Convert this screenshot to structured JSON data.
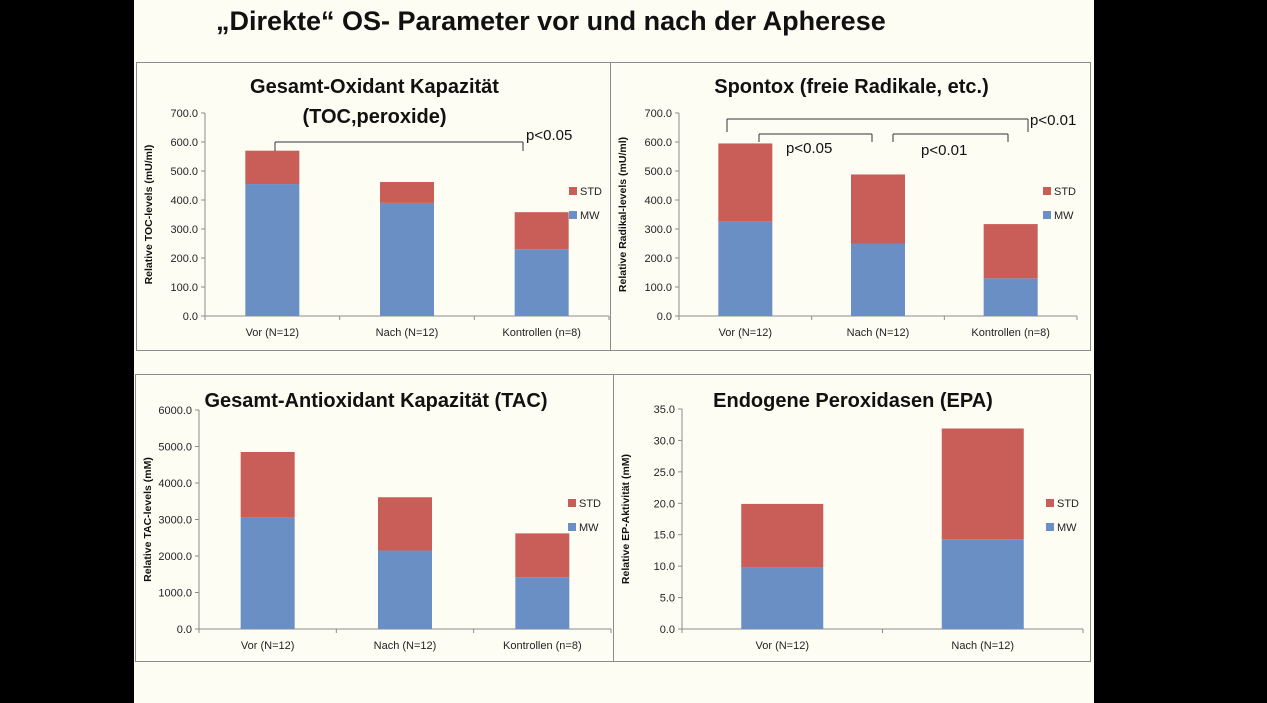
{
  "slide_title": "„Direkte“ OS- Parameter vor und nach der Apherese",
  "colors": {
    "mw": "#6a8fc5",
    "std": "#c95e58",
    "axis": "#8c8c8c",
    "bracket": "#333333"
  },
  "legend": {
    "std": "STD",
    "mw": "MW"
  },
  "chart_data": [
    {
      "type": "bar",
      "stacked": true,
      "title_lines": [
        "Gesamt-Oxidant Kapazität",
        "(TOC,peroxide)"
      ],
      "ylabel": "Relative TOC-levels (mU/ml)",
      "categories": [
        "Vor (N=12)",
        "Nach (N=12)",
        "Kontrollen (n=8)"
      ],
      "y_ticks": [
        "0.0",
        "100.0",
        "200.0",
        "300.0",
        "400.0",
        "500.0",
        "600.0",
        "700.0"
      ],
      "ylim": [
        0,
        700
      ],
      "series": [
        {
          "name": "MW",
          "values": [
            455,
            390,
            230
          ]
        },
        {
          "name": "STD",
          "values": [
            115,
            72,
            128
          ]
        }
      ],
      "annotations": [
        "p<0.05"
      ]
    },
    {
      "type": "bar",
      "stacked": true,
      "title_lines": [
        "Spontox (freie Radikale, etc.)"
      ],
      "ylabel": "Relative Radikal-levels (mU/ml)",
      "categories": [
        "Vor (N=12)",
        "Nach (N=12)",
        "Kontrollen (n=8)"
      ],
      "y_ticks": [
        "0.0",
        "100.0",
        "200.0",
        "300.0",
        "400.0",
        "500.0",
        "600.0",
        "700.0"
      ],
      "ylim": [
        0,
        700
      ],
      "series": [
        {
          "name": "MW",
          "values": [
            325,
            250,
            130
          ]
        },
        {
          "name": "STD",
          "values": [
            270,
            238,
            187
          ]
        }
      ],
      "annotations": [
        "p<0.05",
        "p<0.01",
        "p<0.01"
      ]
    },
    {
      "type": "bar",
      "stacked": true,
      "title_lines": [
        "Gesamt-Antioxidant Kapazität (TAC)"
      ],
      "ylabel": "Relative TAC-levels (mM)",
      "categories": [
        "Vor (N=12)",
        "Nach (N=12)",
        "Kontrollen (n=8)"
      ],
      "y_ticks": [
        "0.0",
        "1000.0",
        "2000.0",
        "3000.0",
        "4000.0",
        "5000.0",
        "6000.0"
      ],
      "ylim": [
        0,
        6000
      ],
      "series": [
        {
          "name": "MW",
          "values": [
            3050,
            2150,
            1420
          ]
        },
        {
          "name": "STD",
          "values": [
            1800,
            1460,
            1200
          ]
        }
      ],
      "annotations": []
    },
    {
      "type": "bar",
      "stacked": true,
      "title_lines": [
        "Endogene Peroxidasen (EPA)"
      ],
      "ylabel": "Relative EP-Aktivität (mM)",
      "categories": [
        "Vor (N=12)",
        "Nach (N=12)"
      ],
      "y_ticks": [
        "0.0",
        "5.0",
        "10.0",
        "15.0",
        "20.0",
        "25.0",
        "30.0",
        "35.0"
      ],
      "ylim": [
        0,
        35
      ],
      "series": [
        {
          "name": "MW",
          "values": [
            9.8,
            14.3
          ]
        },
        {
          "name": "STD",
          "values": [
            10.1,
            17.6
          ]
        }
      ],
      "annotations": []
    }
  ]
}
